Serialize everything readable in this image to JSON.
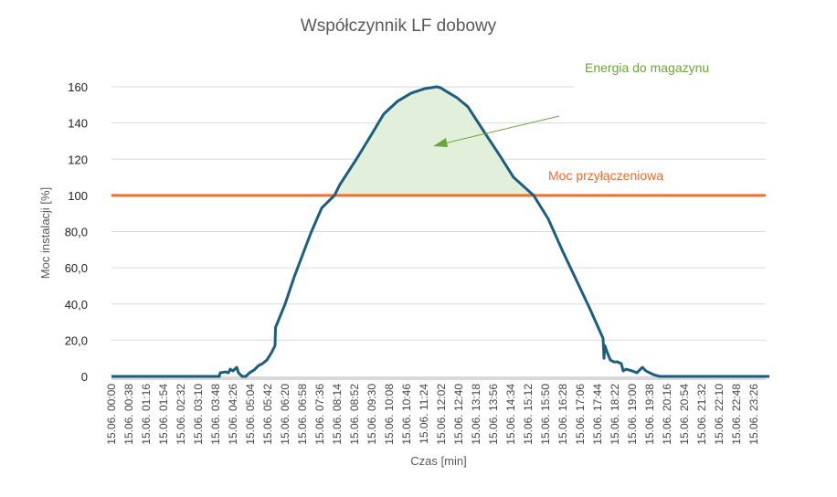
{
  "chart_data": {
    "type": "area",
    "title": "Współczynnik LF dobowy",
    "xlabel": "Czas [min]",
    "ylabel": "Moc instalacji  [%]",
    "ylim": [
      0,
      160
    ],
    "xlim_minutes": [
      0,
      1440
    ],
    "y_ticks": [
      {
        "value": 0,
        "label": "0"
      },
      {
        "value": 20,
        "label": "20,0"
      },
      {
        "value": 40,
        "label": "40,0"
      },
      {
        "value": 60,
        "label": "60,0"
      },
      {
        "value": 80,
        "label": "80,0"
      },
      {
        "value": 100,
        "label": "100"
      },
      {
        "value": 120,
        "label": "120"
      },
      {
        "value": 140,
        "label": "140"
      },
      {
        "value": 160,
        "label": "160"
      }
    ],
    "x_tick_labels": [
      "15.06. 00:00",
      "15.06. 00:38",
      "15.06. 01:16",
      "15.06. 01:54",
      "15.06. 02:32",
      "15.06. 03:10",
      "15.06. 03:48",
      "15.06. 04:26",
      "15.06. 05:04",
      "15.06. 05:42",
      "15.06. 06:20",
      "15.06. 06:58",
      "15.06. 07:36",
      "15.06. 08:14",
      "15.06. 08:52",
      "15.06. 09:30",
      "15.06. 10:08",
      "15.06. 10:46",
      "15.06. 11:24",
      "15.06. 12:02",
      "15.06. 12:40",
      "15.06. 13:18",
      "15.06. 13:56",
      "15.06. 14:34",
      "15.06. 15:12",
      "15.06. 15:50",
      "15.06. 16:28",
      "15.06. 17:06",
      "15.06. 17:44",
      "15.06. 18:22",
      "15.06. 19:00",
      "15.06. 19:38",
      "15.06. 20:16",
      "15.06. 20:54",
      "15.06. 21:32",
      "15.06. 22:10",
      "15.06. 22:48",
      "15.06. 23:26"
    ],
    "x_tick_step_minutes": 38,
    "series": [
      {
        "name": "Moc instalacji",
        "color": "#1b5e80",
        "points_minutes_value": [
          [
            0,
            0
          ],
          [
            236,
            0
          ],
          [
            238,
            2
          ],
          [
            250,
            2.5
          ],
          [
            256,
            2
          ],
          [
            260,
            4
          ],
          [
            266,
            3
          ],
          [
            274,
            5
          ],
          [
            278,
            2
          ],
          [
            286,
            0
          ],
          [
            294,
            0
          ],
          [
            302,
            2
          ],
          [
            312,
            3.5
          ],
          [
            322,
            6
          ],
          [
            330,
            7
          ],
          [
            340,
            9
          ],
          [
            350,
            13
          ],
          [
            358,
            17
          ],
          [
            359,
            27
          ],
          [
            380,
            40
          ],
          [
            400,
            55
          ],
          [
            436,
            79
          ],
          [
            460,
            93
          ],
          [
            488,
            100
          ],
          [
            500,
            106
          ],
          [
            536,
            120
          ],
          [
            570,
            134
          ],
          [
            596,
            145
          ],
          [
            626,
            152
          ],
          [
            656,
            156.5
          ],
          [
            686,
            159
          ],
          [
            712,
            160
          ],
          [
            720,
            159.5
          ],
          [
            736,
            157
          ],
          [
            756,
            154
          ],
          [
            780,
            149
          ],
          [
            816,
            135
          ],
          [
            850,
            122
          ],
          [
            880,
            110
          ],
          [
            924,
            100
          ],
          [
            956,
            87
          ],
          [
            986,
            70
          ],
          [
            1016,
            54
          ],
          [
            1046,
            38
          ],
          [
            1076,
            21
          ],
          [
            1078,
            10
          ],
          [
            1080,
            17
          ],
          [
            1084,
            14
          ],
          [
            1092,
            9
          ],
          [
            1100,
            8
          ],
          [
            1108,
            8
          ],
          [
            1116,
            7
          ],
          [
            1120,
            3
          ],
          [
            1126,
            4
          ],
          [
            1140,
            3
          ],
          [
            1150,
            2
          ],
          [
            1162,
            5
          ],
          [
            1170,
            3
          ],
          [
            1186,
            1
          ],
          [
            1200,
            0
          ],
          [
            1440,
            0
          ]
        ]
      },
      {
        "name": "Moc przyłączeniowa",
        "color": "#f07030",
        "value": 100
      }
    ],
    "fill_color": "#e2efda",
    "annotations": [
      {
        "text": "Energia do magazynu",
        "color": "#6aa63a"
      },
      {
        "text": "Moc przyłączeniowa",
        "color": "#ee6a2a"
      }
    ],
    "grid": true
  }
}
